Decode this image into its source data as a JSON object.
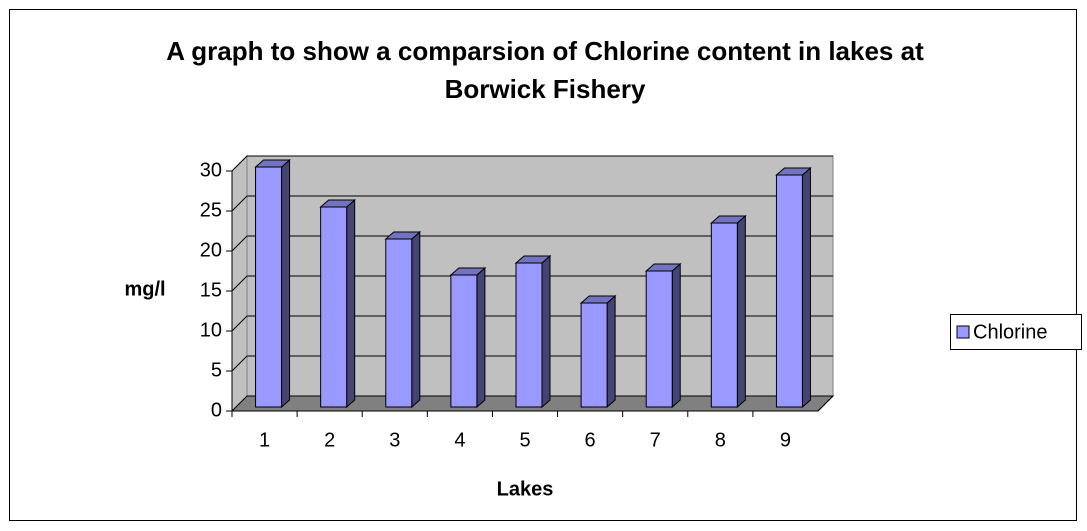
{
  "chart_data": {
    "type": "bar3d",
    "title": "A graph to show a comparsion of Chlorine content in lakes at Borwick Fishery",
    "x_label": "Lakes",
    "y_label": "mg/l",
    "categories": [
      "1",
      "2",
      "3",
      "4",
      "5",
      "6",
      "7",
      "8",
      "9"
    ],
    "series": [
      {
        "name": "Chlorine",
        "color": "#9999ff",
        "values": [
          30,
          25,
          21,
          16.5,
          18,
          13,
          17,
          23,
          29
        ]
      }
    ],
    "ylim": [
      0,
      30
    ],
    "yticks": [
      0,
      5,
      10,
      15,
      20,
      25,
      30
    ],
    "grid": true,
    "legend": "right"
  }
}
